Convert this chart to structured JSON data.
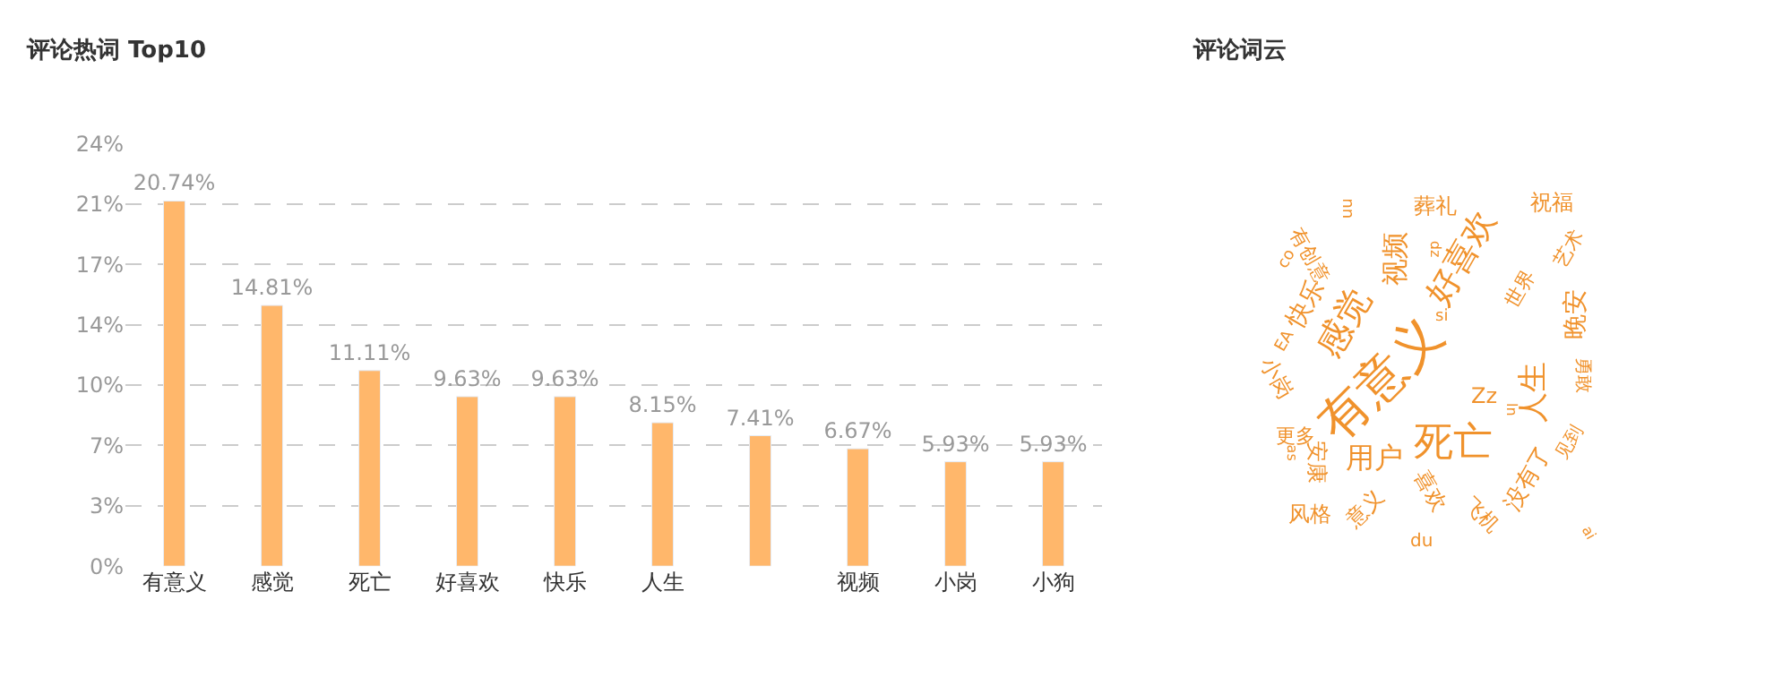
{
  "chart_data": [
    {
      "type": "bar",
      "title": "评论热词 Top10",
      "categories": [
        "有意义",
        "感觉",
        "死亡",
        "好喜欢",
        "快乐",
        "人生",
        null,
        "视频",
        "小岗",
        "小狗"
      ],
      "values": [
        20.74,
        14.81,
        11.11,
        9.63,
        9.63,
        8.15,
        7.41,
        6.67,
        5.93,
        5.93
      ],
      "value_labels": [
        "20.74%",
        "14.81%",
        "11.11%",
        "9.63%",
        "9.63%",
        "8.15%",
        "7.41%",
        "6.67%",
        "5.93%",
        "5.93%"
      ],
      "color": "#ffb76b",
      "ylim": [
        0,
        24
      ],
      "yticks": [
        {
          "value": 0,
          "label": "0%"
        },
        {
          "value": 3.43,
          "label": "3%"
        },
        {
          "value": 6.86,
          "label": "7%"
        },
        {
          "value": 10.29,
          "label": "10%"
        },
        {
          "value": 13.71,
          "label": "14%"
        },
        {
          "value": 17.14,
          "label": "17%"
        },
        {
          "value": 20.57,
          "label": "21%"
        },
        {
          "value": 24,
          "label": "24%"
        }
      ],
      "grid": "y"
    },
    {
      "type": "other",
      "title": "评论词云",
      "annotations": [
        "有意义",
        "感觉",
        "好喜欢",
        "死亡",
        "人生",
        "用户",
        "视频",
        "葬礼",
        "祝福",
        "艺术",
        "晚安",
        "世界",
        "快乐",
        "有创意",
        "小岗",
        "更多",
        "安康",
        "风格",
        "意义",
        "喜欢",
        "飞机",
        "没有了",
        "见到",
        "勇敢",
        "Zz",
        "si",
        "du",
        "nn",
        "dz",
        "co",
        "EA",
        "as",
        "ai",
        "ln"
      ],
      "color": "#f0922c"
    }
  ]
}
